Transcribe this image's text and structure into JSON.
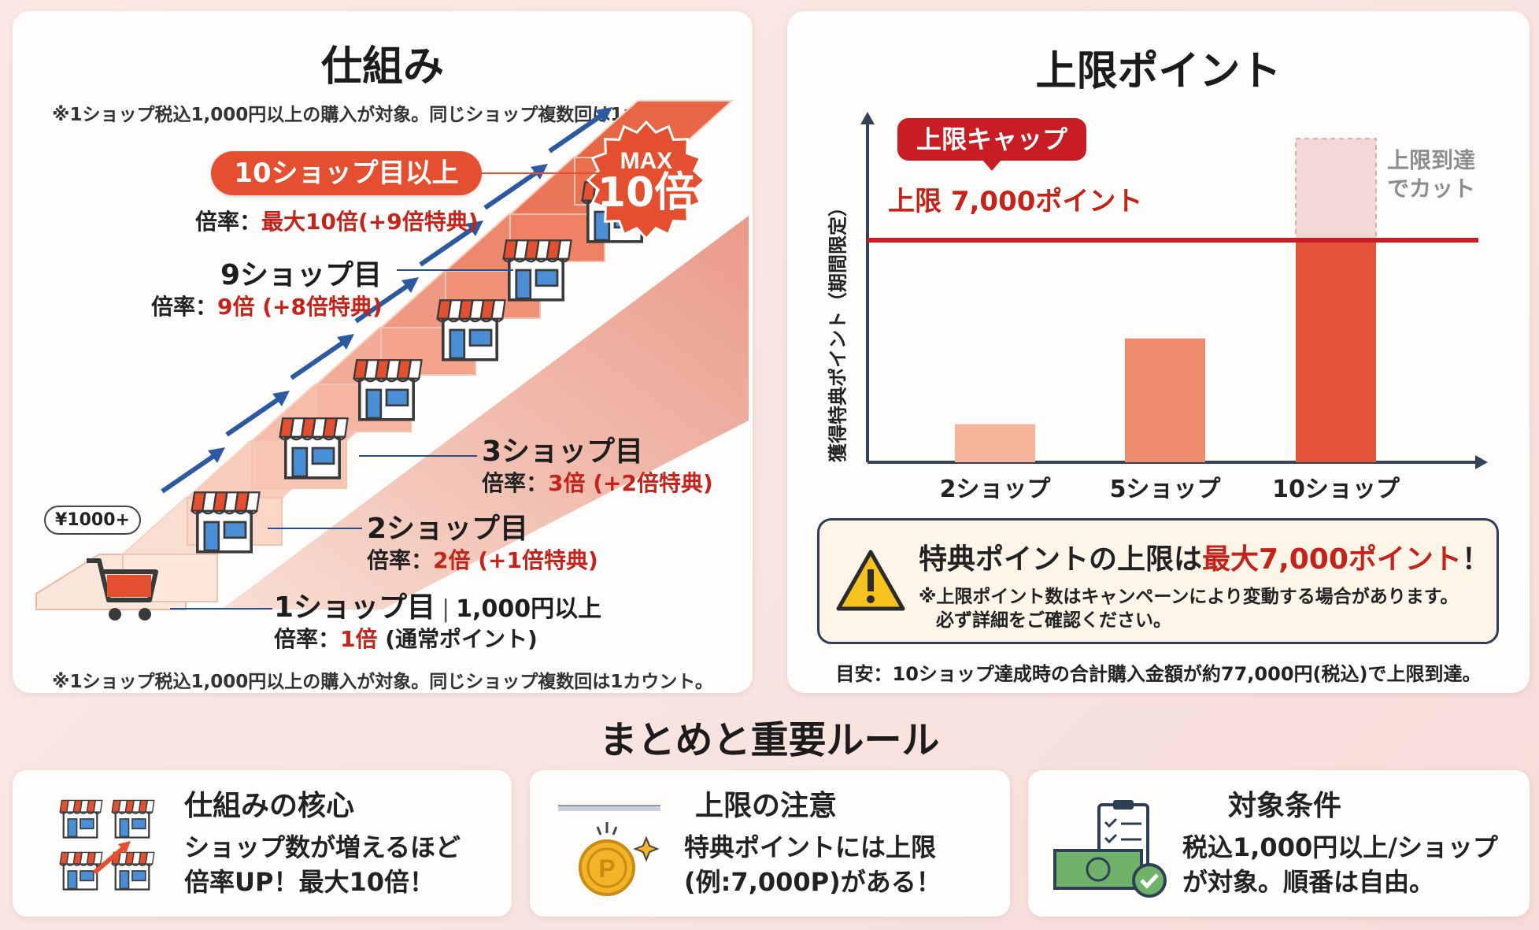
{
  "left": {
    "title": "仕組み",
    "note_top": "※1ショップ税込1,000円以上の購入が対象。同じショップ複数回は1カウント。",
    "note_bottom": "※1ショップ税込1,000円以上の購入が対象。同じショップ複数回は1カウント。",
    "cart_tag": "¥1000+",
    "max_badge": {
      "top": "MAX",
      "bottom": "10倍"
    },
    "step10": {
      "label": "10ショップ目以上",
      "rate_prefix": "倍率：",
      "rate_value": "最大10倍(+9倍特典)"
    },
    "step9": {
      "label": "9ショップ目",
      "rate_prefix": "倍率：",
      "rate_value": "9倍 (+8倍特典)"
    },
    "step3": {
      "label": "3ショップ目",
      "rate_prefix": "倍率：",
      "rate_value": "3倍 (+2倍特典)"
    },
    "step2": {
      "label": "2ショップ目",
      "rate_prefix": "倍率：",
      "rate_value": "2倍 (+1倍特典)"
    },
    "step1": {
      "label": "1ショップ目",
      "label_extra": "1,000円以上",
      "rate_prefix": "倍率：",
      "rate_value": "1倍",
      "rate_suffix": " (通常ポイント)"
    }
  },
  "right": {
    "title": "上限ポイント",
    "cap_bubble": "上限キャップ",
    "cap_line_label": "上限 7,000ポイント",
    "cut_note_1": "上限到達",
    "cut_note_2": "でカット",
    "warning_title_a": "特典ポイントの上限は",
    "warning_title_b": "最大7,000ポイント",
    "warning_title_c": "！",
    "warning_body_1": "※上限ポイント数はキャンペーンにより変動する場合があります。",
    "warning_body_2": "必ず詳細をご確認ください。",
    "footnote": "目安：10ショップ達成時の合計購入金額が約77,000円(税込)で上限到達。"
  },
  "chart_data": {
    "type": "bar",
    "title": "上限ポイント",
    "xlabel": "",
    "ylabel": "獲得特典ポイント（期間限定）",
    "categories": [
      "2ショップ",
      "5ショップ",
      "10ショップ"
    ],
    "values": [
      1200,
      3900,
      7000
    ],
    "uncapped_value_10": 10200,
    "cap": 7000,
    "ylim": [
      0,
      10500
    ],
    "colors": [
      "#f4b59a",
      "#ef8a6c",
      "#e4543a"
    ],
    "cap_color": "#c81d25"
  },
  "summary": {
    "heading": "まとめと重要ルール",
    "cards": [
      {
        "title": "仕組みの核心",
        "body_1": "ショップ数が増えるほど",
        "body_2": "倍率UP！最大10倍！"
      },
      {
        "title": "上限の注意",
        "body_1": "特典ポイントには上限",
        "body_2": "(例:7,000P)がある！"
      },
      {
        "title": "対象条件",
        "body_1": "税込1,000円以上/ショップ",
        "body_2": "が対象。順番は自由。"
      }
    ]
  }
}
